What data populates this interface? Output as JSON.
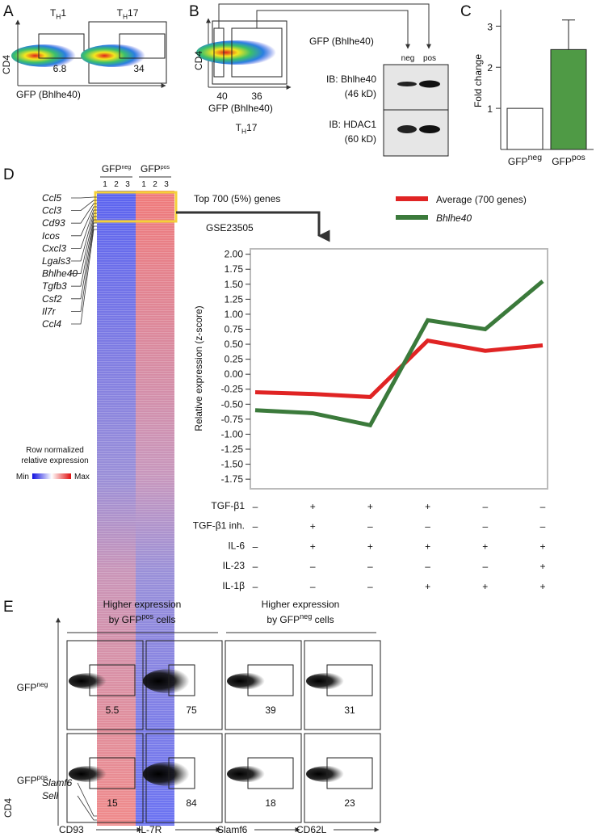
{
  "panels": {
    "a": {
      "letter": "A",
      "y_label": "CD4",
      "x_label": "GFP (Bhlhe40)",
      "plots": [
        {
          "title": {
            "base": "T",
            "sub": "H",
            "tail": "1"
          },
          "gate": 6.8
        },
        {
          "title": {
            "base": "T",
            "sub": "H",
            "tail": "17"
          },
          "gate": 34
        }
      ]
    },
    "b": {
      "letter": "B",
      "y_label": "CD4",
      "x_label": "GFP (Bhlhe40)",
      "subset": {
        "base": "T",
        "sub": "H",
        "tail": "17"
      },
      "gates": [
        40,
        36
      ],
      "blot": {
        "title": "GFP (Bhlhe40)",
        "lanes": [
          "neg",
          "pos"
        ],
        "rows": [
          {
            "antibody": "IB: Bhlhe40",
            "size": "(46 kD)"
          },
          {
            "antibody": "IB: HDAC1",
            "size": "(60 kD)"
          }
        ]
      }
    },
    "c": {
      "letter": "C",
      "chart_data": {
        "type": "bar",
        "y_label": "Fold change",
        "categories": [
          {
            "base": "GFP",
            "sup": "neg"
          },
          {
            "base": "GFP",
            "sup": "pos"
          }
        ],
        "values": [
          1,
          2.43
        ],
        "errors": [
          null,
          0.72
        ],
        "colors": [
          "#ffffff",
          "#4f9a45"
        ],
        "ylim": [
          0,
          3.4
        ],
        "yticks": [
          1,
          2,
          3
        ]
      }
    },
    "d": {
      "letter": "D",
      "heatmap": {
        "columns": [
          {
            "group": {
              "base": "GFP",
              "sup": "neg"
            },
            "replicates": [
              1,
              2,
              3
            ]
          },
          {
            "group": {
              "base": "GFP",
              "sup": "pos"
            },
            "replicates": [
              1,
              2,
              3
            ]
          }
        ],
        "genes_top": [
          "Ccl5",
          "Ccl3",
          "Cd93",
          "Icos",
          "Cxcl3",
          "Lgals3",
          "Bhlhe40",
          "Tgfb3",
          "Csf2",
          "Il7r",
          "Ccl4"
        ],
        "genes_bottom": [
          "Slamf6",
          "Sell"
        ],
        "legend_title": [
          "Row normalized",
          "relative expression"
        ],
        "legend_min": "Min",
        "legend_max": "Max"
      },
      "selection": "Top 700 (5%) genes",
      "dataset": "GSE23505",
      "chart_data": {
        "type": "line",
        "y_label": "Relative expression (z-score)",
        "ylim": [
          -1.91,
          2.09
        ],
        "yticks": [
          {
            "value": 2,
            "label": "2.00"
          },
          {
            "value": 1.75,
            "label": "1.75"
          },
          {
            "value": 1.5,
            "label": "1.50"
          },
          {
            "value": 1.25,
            "label": "1.25"
          },
          {
            "value": 1,
            "label": "1.00"
          },
          {
            "value": 0.75,
            "label": "0.75"
          },
          {
            "value": 0.5,
            "label": "0.50"
          },
          {
            "value": 0.25,
            "label": "0.25"
          },
          {
            "value": 0,
            "label": "0.00"
          },
          {
            "value": -0.25,
            "label": "-0.25"
          },
          {
            "value": -0.5,
            "label": "-0.50"
          },
          {
            "value": -0.75,
            "label": "-0.75"
          },
          {
            "value": -1,
            "label": "-1.00"
          },
          {
            "value": -1.25,
            "label": "-1.25"
          },
          {
            "value": -1.5,
            "label": "-1.50"
          },
          {
            "value": -1.75,
            "label": "-1.75"
          }
        ],
        "series": [
          {
            "name": "Average (700 genes)",
            "color": "#e02424",
            "values": [
              -0.3,
              -0.33,
              -0.38,
              0.56,
              0.39,
              0.48
            ]
          },
          {
            "name": "Bhlhe40",
            "color": "#3b7a3b",
            "values": [
              -0.6,
              -0.65,
              -0.85,
              0.9,
              0.75,
              1.55
            ]
          }
        ],
        "conditions": [
          {
            "name": "TGF-β1",
            "values": [
              "–",
              "+",
              "+",
              "+",
              "–",
              "–"
            ]
          },
          {
            "name": "TGF-β1 inh.",
            "values": [
              "–",
              "+",
              "–",
              "–",
              "–",
              "–"
            ]
          },
          {
            "name": "IL-6",
            "values": [
              "–",
              "+",
              "+",
              "+",
              "+",
              "+"
            ]
          },
          {
            "name": "IL-23",
            "values": [
              "–",
              "–",
              "–",
              "–",
              "–",
              "+"
            ]
          },
          {
            "name": "IL-1β",
            "values": [
              "–",
              "–",
              "–",
              "+",
              "+",
              "+"
            ]
          }
        ]
      }
    },
    "e": {
      "letter": "E",
      "y_label": "CD4",
      "groups": [
        {
          "title": "Higher expression",
          "subtitle": {
            "base": "by GFP",
            "sup": "pos",
            "tail": " cells"
          }
        },
        {
          "title": "Higher expression",
          "subtitle": {
            "base": "by GFP",
            "sup": "neg",
            "tail": " cells"
          }
        }
      ],
      "rows": [
        {
          "base": "GFP",
          "sup": "neg"
        },
        {
          "base": "GFP",
          "sup": "pos"
        }
      ],
      "markers": [
        "CD93",
        "IL-7R",
        "Slamf6",
        "CD62L"
      ],
      "gates": [
        [
          5.5,
          75,
          39,
          31
        ],
        [
          15,
          84,
          18,
          23
        ]
      ]
    }
  }
}
